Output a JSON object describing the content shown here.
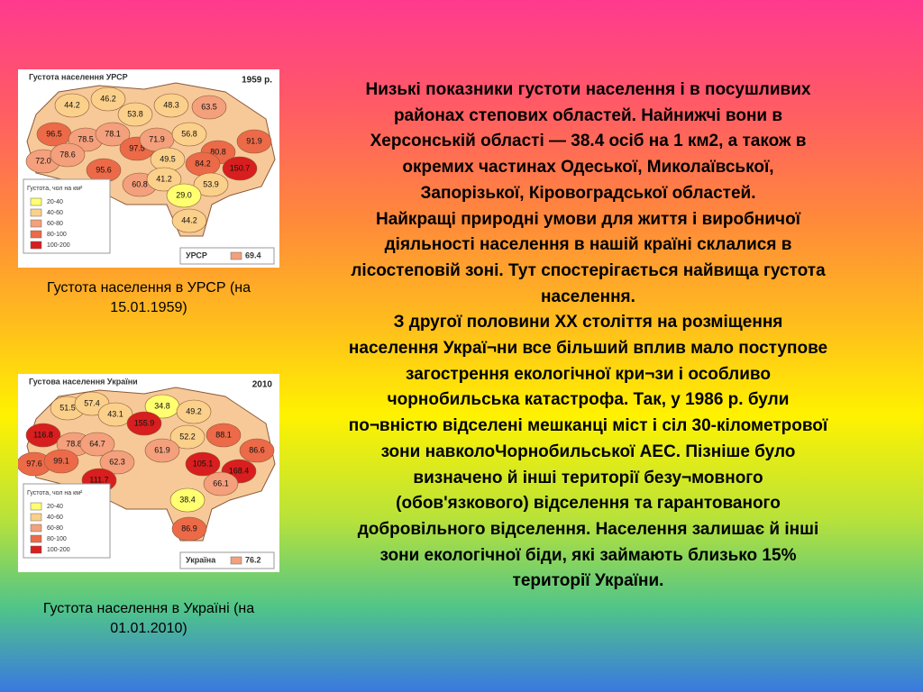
{
  "maps": [
    {
      "title": "Густота населення УРСР",
      "year": "1959 р.",
      "legend_title": "Густота, чол на км²",
      "legend": [
        {
          "label": "20-40",
          "color": "#ffff70"
        },
        {
          "label": "40-60",
          "color": "#fbd08a"
        },
        {
          "label": "60-80",
          "color": "#f4a07c"
        },
        {
          "label": "80-100",
          "color": "#ec6a48"
        },
        {
          "label": "100-200",
          "color": "#d81e1e"
        }
      ],
      "total_name": "УРСР",
      "total_value": "69.4",
      "total_color": "#f4a07c",
      "regions": [
        {
          "label": "44.2",
          "color": "#fbd08a"
        },
        {
          "label": "46.2",
          "color": "#fbd08a"
        },
        {
          "label": "53.8",
          "color": "#fbd08a"
        },
        {
          "label": "48.3",
          "color": "#fbd08a"
        },
        {
          "label": "63.5",
          "color": "#f4a07c"
        },
        {
          "label": "96.5",
          "color": "#ec6a48"
        },
        {
          "label": "78.5",
          "color": "#f4a07c"
        },
        {
          "label": "78.1",
          "color": "#f4a07c"
        },
        {
          "label": "97.5",
          "color": "#ec6a48"
        },
        {
          "label": "71.9",
          "color": "#f4a07c"
        },
        {
          "label": "56.8",
          "color": "#fbd08a"
        },
        {
          "label": "80.8",
          "color": "#ec6a48"
        },
        {
          "label": "91.9",
          "color": "#ec6a48"
        },
        {
          "label": "72.0",
          "color": "#f4a07c"
        },
        {
          "label": "78.6",
          "color": "#f4a07c"
        },
        {
          "label": "49.5",
          "color": "#fbd08a"
        },
        {
          "label": "84.2",
          "color": "#ec6a48"
        },
        {
          "label": "150.7",
          "color": "#d81e1e"
        },
        {
          "label": "95.6",
          "color": "#ec6a48"
        },
        {
          "label": "60.8",
          "color": "#f4a07c"
        },
        {
          "label": "41.2",
          "color": "#fbd08a"
        },
        {
          "label": "53.9",
          "color": "#fbd08a"
        },
        {
          "label": "29.0",
          "color": "#ffff70"
        },
        {
          "label": "44.2",
          "color": "#fbd08a"
        }
      ]
    },
    {
      "title": "Густова населення України",
      "year": "2010",
      "legend_title": "Густота, чол на км²",
      "legend": [
        {
          "label": "20-40",
          "color": "#ffff70"
        },
        {
          "label": "40-60",
          "color": "#fbd08a"
        },
        {
          "label": "60-80",
          "color": "#f4a07c"
        },
        {
          "label": "80-100",
          "color": "#ec6a48"
        },
        {
          "label": "100-200",
          "color": "#d81e1e"
        }
      ],
      "total_name": "Україна",
      "total_value": "76.2",
      "total_color": "#f4a07c",
      "regions": [
        {
          "label": "51.5",
          "color": "#fbd08a"
        },
        {
          "label": "57.4",
          "color": "#fbd08a"
        },
        {
          "label": "43.1",
          "color": "#fbd08a"
        },
        {
          "label": "34.8",
          "color": "#ffff70"
        },
        {
          "label": "49.2",
          "color": "#fbd08a"
        },
        {
          "label": "116.8",
          "color": "#d81e1e"
        },
        {
          "label": "78.8",
          "color": "#f4a07c"
        },
        {
          "label": "64.7",
          "color": "#f4a07c"
        },
        {
          "label": "155.9",
          "color": "#d81e1e"
        },
        {
          "label": "52.2",
          "color": "#fbd08a"
        },
        {
          "label": "88.1",
          "color": "#ec6a48"
        },
        {
          "label": "97.6",
          "color": "#ec6a48"
        },
        {
          "label": "99.1",
          "color": "#ec6a48"
        },
        {
          "label": "61.9",
          "color": "#f4a07c"
        },
        {
          "label": "86.6",
          "color": "#ec6a48"
        },
        {
          "label": "62.3",
          "color": "#f4a07c"
        },
        {
          "label": "105.1",
          "color": "#d81e1e"
        },
        {
          "label": "168.4",
          "color": "#d81e1e"
        },
        {
          "label": "111.7",
          "color": "#d81e1e"
        },
        {
          "label": "66.1",
          "color": "#f4a07c"
        },
        {
          "label": "38.4",
          "color": "#ffff70"
        },
        {
          "label": "86.9",
          "color": "#ec6a48"
        }
      ]
    }
  ],
  "captions": [
    [
      "Густота населення в УРСР (на",
      "15.01.1959)"
    ],
    [
      "Густота населення в Україні (на",
      "01.01.2010)"
    ]
  ],
  "text": {
    "lines": [
      "Низькі показники густоти населення і в посушливих",
      "районах степових областей. Найнижчі вони в",
      "Херсонській області — 38.4 осіб на 1 км2, а також в",
      "окремих частинах Одеської, Миколаївської,",
      "Запорізької, Кіровоградської областей.",
      "Найкращі природні умови для життя і виробничої",
      "діяльності населення в нашій країні склалися в",
      "лісостеповій зоні. Тут спостерігається найвища густота",
      "населення.",
      " З другої половини XX століття на розміщення",
      "населення Украї¬ни все більший вплив мало поступове",
      "загострення екологічної кри¬зи і особливо",
      "чорнобильська катастрофа. Так, у 1986 р. були",
      "по¬вністю відселені мешканці міст і сіл 30-кілометрової",
      "зони навколоЧорнобильської АЕС. Пізніше було",
      "визначено й інші території безу¬мовного",
      "(обов'язкового) відселення та гарантованого",
      "добровільного відселення. Населення залишає й інші",
      "зони екологічної біди, які займають близько 15%",
      "території України."
    ]
  }
}
